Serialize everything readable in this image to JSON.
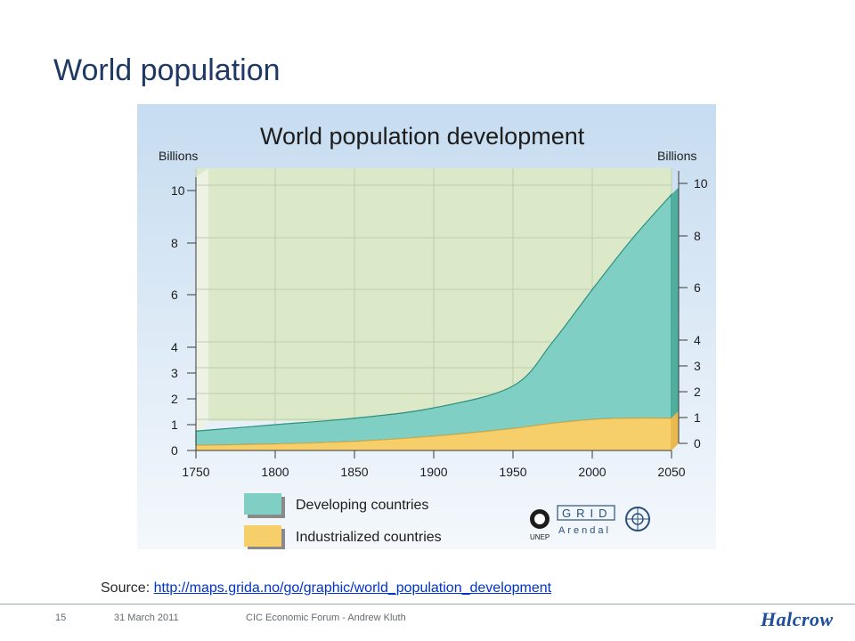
{
  "slide": {
    "title": "World population",
    "source_prefix": "Source: ",
    "source_link": "http://maps.grida.no/go/graphic/world_population_development",
    "page_number": "15",
    "date": "31 March 2011",
    "footer_text": "CIC Economic Forum - Andrew Kluth",
    "logo_text": "Halcrow"
  },
  "chart_data": {
    "type": "area",
    "title": "World population development",
    "ylabel_left": "Billions",
    "ylabel_right": "Billions",
    "x": [
      1750,
      1800,
      1850,
      1900,
      1950,
      1975,
      2000,
      2025,
      2050
    ],
    "xticks": [
      "1750",
      "1800",
      "1850",
      "1900",
      "1950",
      "2000",
      "2050"
    ],
    "yticks": [
      "0",
      "1",
      "2",
      "3",
      "4",
      "6",
      "8",
      "10"
    ],
    "ylim": [
      0,
      10
    ],
    "stacked": true,
    "series": [
      {
        "name": "Industrialized countries",
        "color": "#f6cf6a",
        "values": [
          0.2,
          0.25,
          0.35,
          0.55,
          0.85,
          1.05,
          1.2,
          1.25,
          1.25
        ]
      },
      {
        "name": "Developing countries",
        "color": "#7fcfc4",
        "values": [
          0.55,
          0.75,
          0.9,
          1.1,
          1.65,
          3.15,
          5.0,
          6.9,
          8.6
        ]
      }
    ],
    "legend": [
      "Developing countries",
      "Industrialized countries"
    ],
    "logos": [
      "UNEP",
      "GRID",
      "Arendal"
    ]
  }
}
